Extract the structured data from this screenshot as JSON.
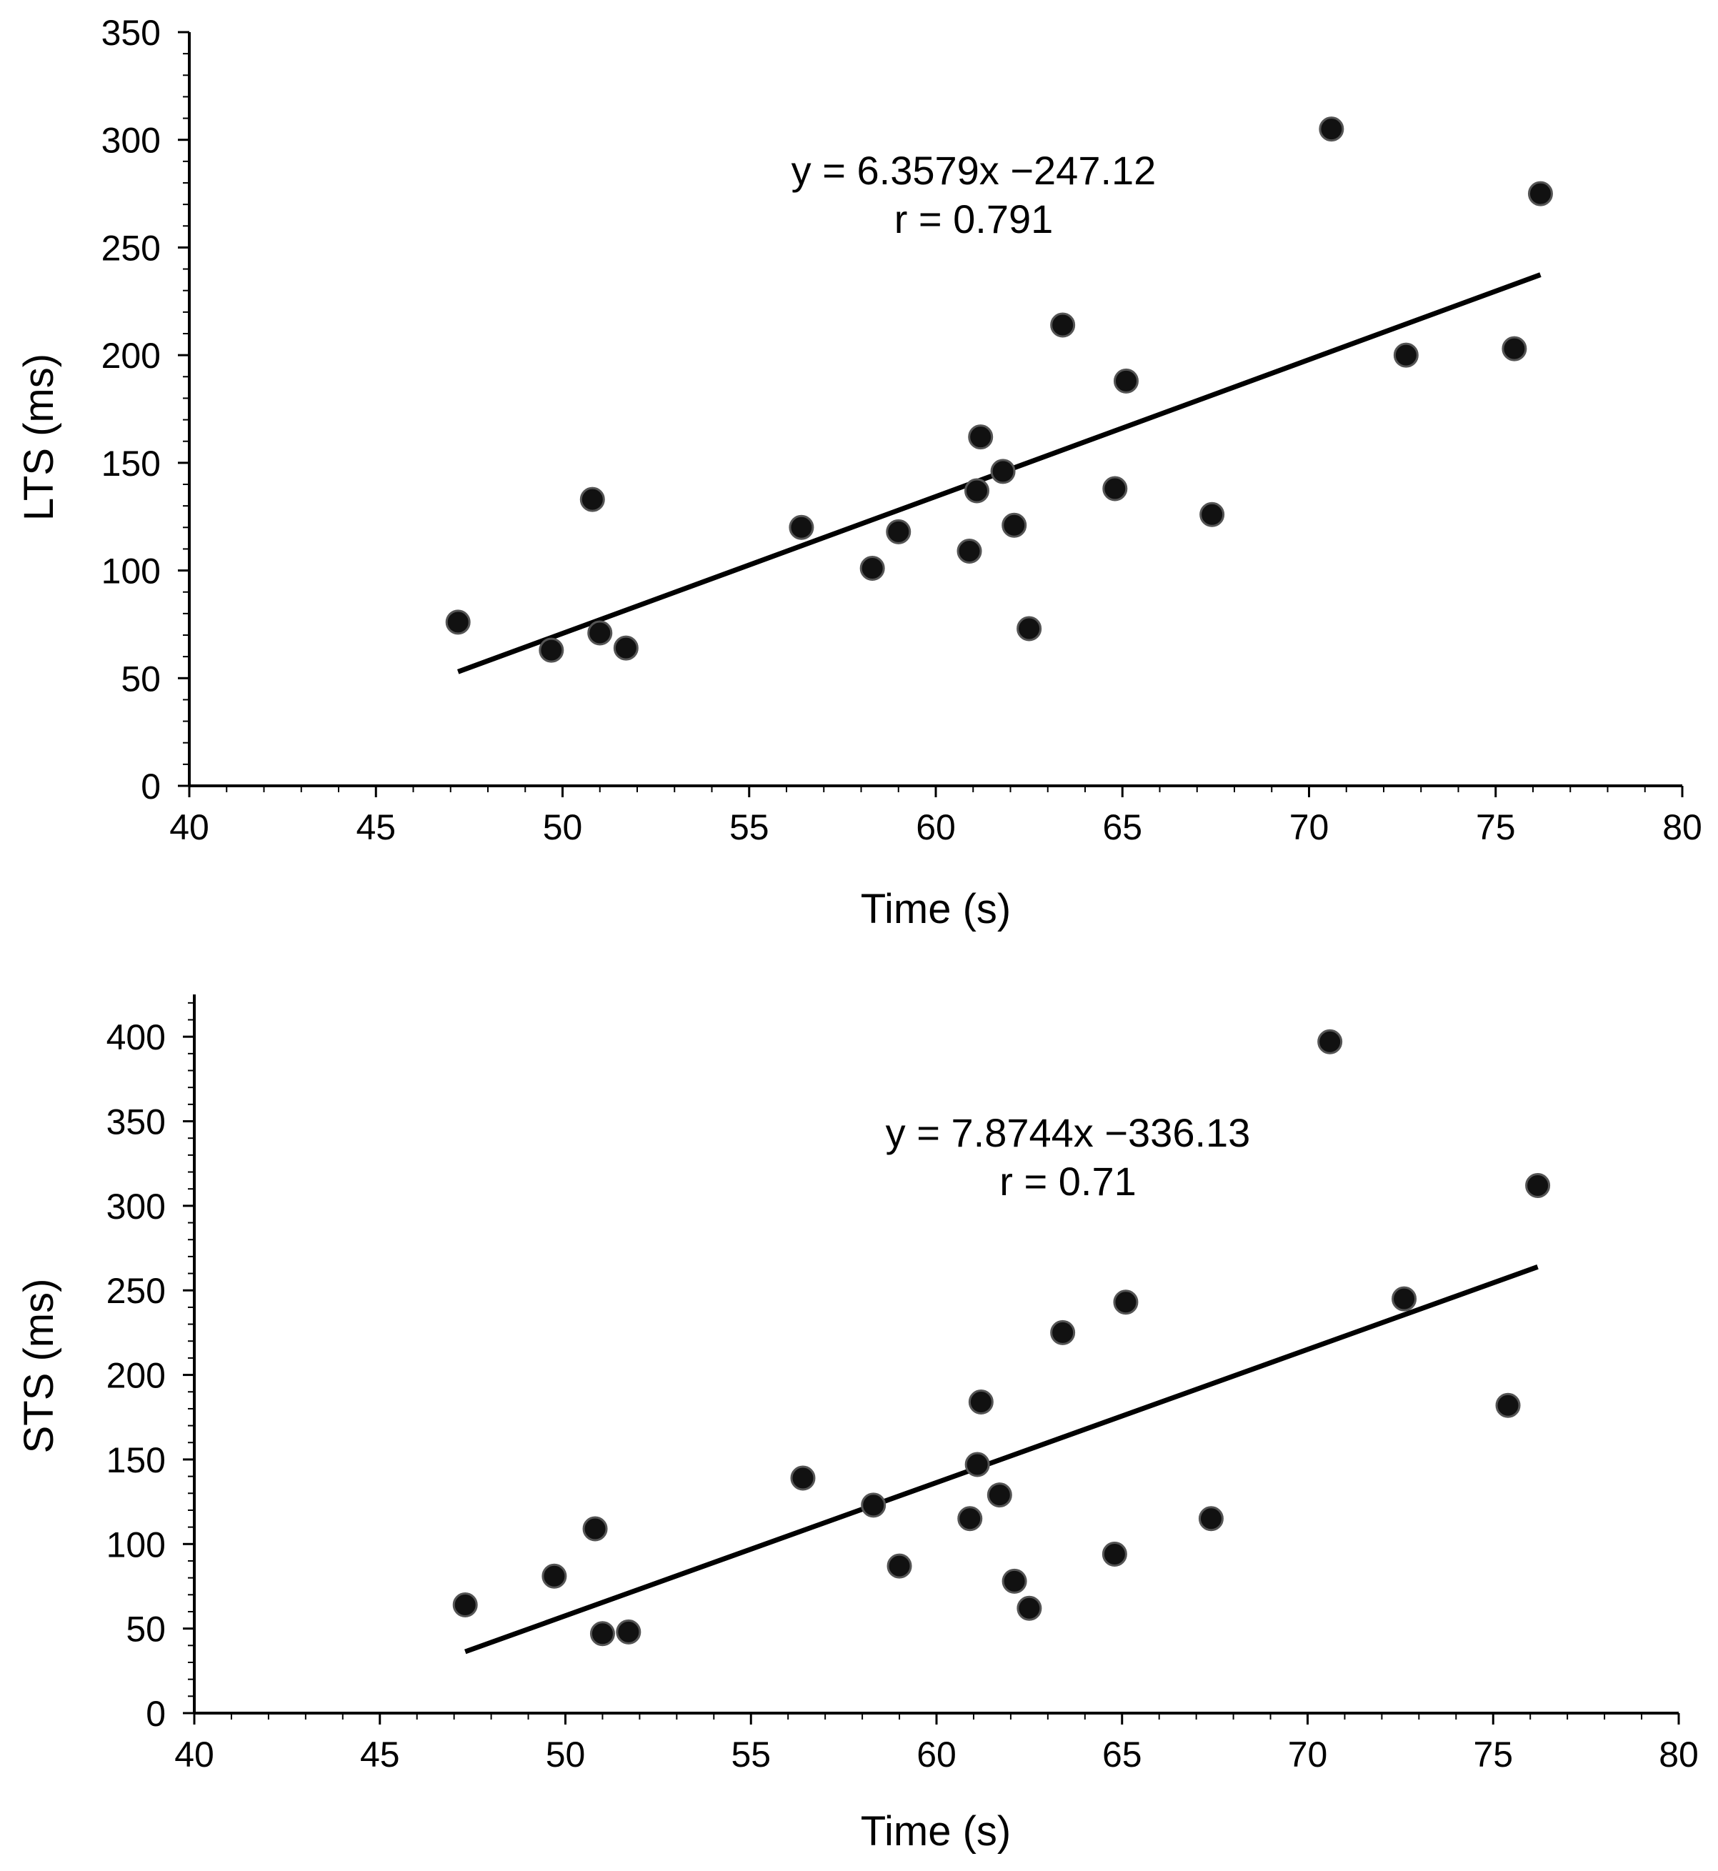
{
  "colors": {
    "ink": "#000000",
    "background": "#ffffff",
    "marker": "#111111"
  },
  "chart_data": [
    {
      "type": "scatter",
      "panel": "top",
      "title": "",
      "xlabel": "Time (s)",
      "ylabel": "LTS (ms)",
      "xlim": [
        40,
        80
      ],
      "ylim": [
        0,
        350
      ],
      "xticks": [
        40,
        45,
        50,
        55,
        60,
        65,
        70,
        75,
        80
      ],
      "xtick_labels": [
        "40",
        "45",
        "50",
        "55",
        "60",
        "65",
        "70",
        "75",
        "80"
      ],
      "yticks": [
        0,
        50,
        100,
        150,
        200,
        250,
        300,
        350
      ],
      "ytick_labels": [
        "0",
        "50",
        "100",
        "150",
        "200",
        "250",
        "300",
        "350"
      ],
      "grid": false,
      "series": [
        {
          "name": "LTS",
          "x": [
            47.2,
            49.7,
            50.8,
            51.0,
            51.7,
            56.4,
            58.3,
            59.0,
            60.9,
            61.1,
            61.2,
            61.8,
            62.1,
            62.5,
            63.4,
            64.8,
            65.1,
            67.4,
            70.6,
            72.6,
            75.5,
            76.2
          ],
          "y": [
            76,
            63,
            133,
            71,
            64,
            120,
            101,
            118,
            109,
            137,
            162,
            146,
            121,
            73,
            214,
            138,
            188,
            126,
            305,
            200,
            203,
            275
          ]
        }
      ],
      "fit": {
        "slope": 6.3579,
        "intercept": -247.12,
        "x_range": [
          47.2,
          76.2
        ]
      },
      "annotations": [
        "y = 6.3579x −247.12",
        "r = 0.791"
      ]
    },
    {
      "type": "scatter",
      "panel": "bottom",
      "title": "",
      "xlabel": "Time (s)",
      "ylabel": "STS (ms)",
      "xlim": [
        40,
        80
      ],
      "ylim": [
        0,
        425
      ],
      "xticks": [
        40,
        45,
        50,
        55,
        60,
        65,
        70,
        75,
        80
      ],
      "xtick_labels": [
        "40",
        "45",
        "50",
        "55",
        "60",
        "65",
        "70",
        "75",
        "80"
      ],
      "yticks": [
        0,
        50,
        100,
        150,
        200,
        250,
        300,
        350,
        400
      ],
      "ytick_labels": [
        "0",
        "50",
        "100",
        "150",
        "200",
        "250",
        "300",
        "350",
        "400"
      ],
      "grid": false,
      "series": [
        {
          "name": "STS",
          "x": [
            47.3,
            49.7,
            50.8,
            51.0,
            51.7,
            56.4,
            58.3,
            59.0,
            60.9,
            61.1,
            61.2,
            61.7,
            62.1,
            62.5,
            63.4,
            64.8,
            65.1,
            67.4,
            70.6,
            72.6,
            75.4,
            76.2
          ],
          "y": [
            64,
            81,
            109,
            47,
            48,
            139,
            123,
            87,
            115,
            147,
            184,
            129,
            78,
            62,
            225,
            94,
            243,
            115,
            397,
            245,
            182,
            312
          ]
        }
      ],
      "fit": {
        "slope": 7.8744,
        "intercept": -336.13,
        "x_range": [
          47.3,
          76.2
        ]
      },
      "annotations": [
        "y = 7.8744x −336.13",
        "r = 0.71"
      ]
    }
  ]
}
